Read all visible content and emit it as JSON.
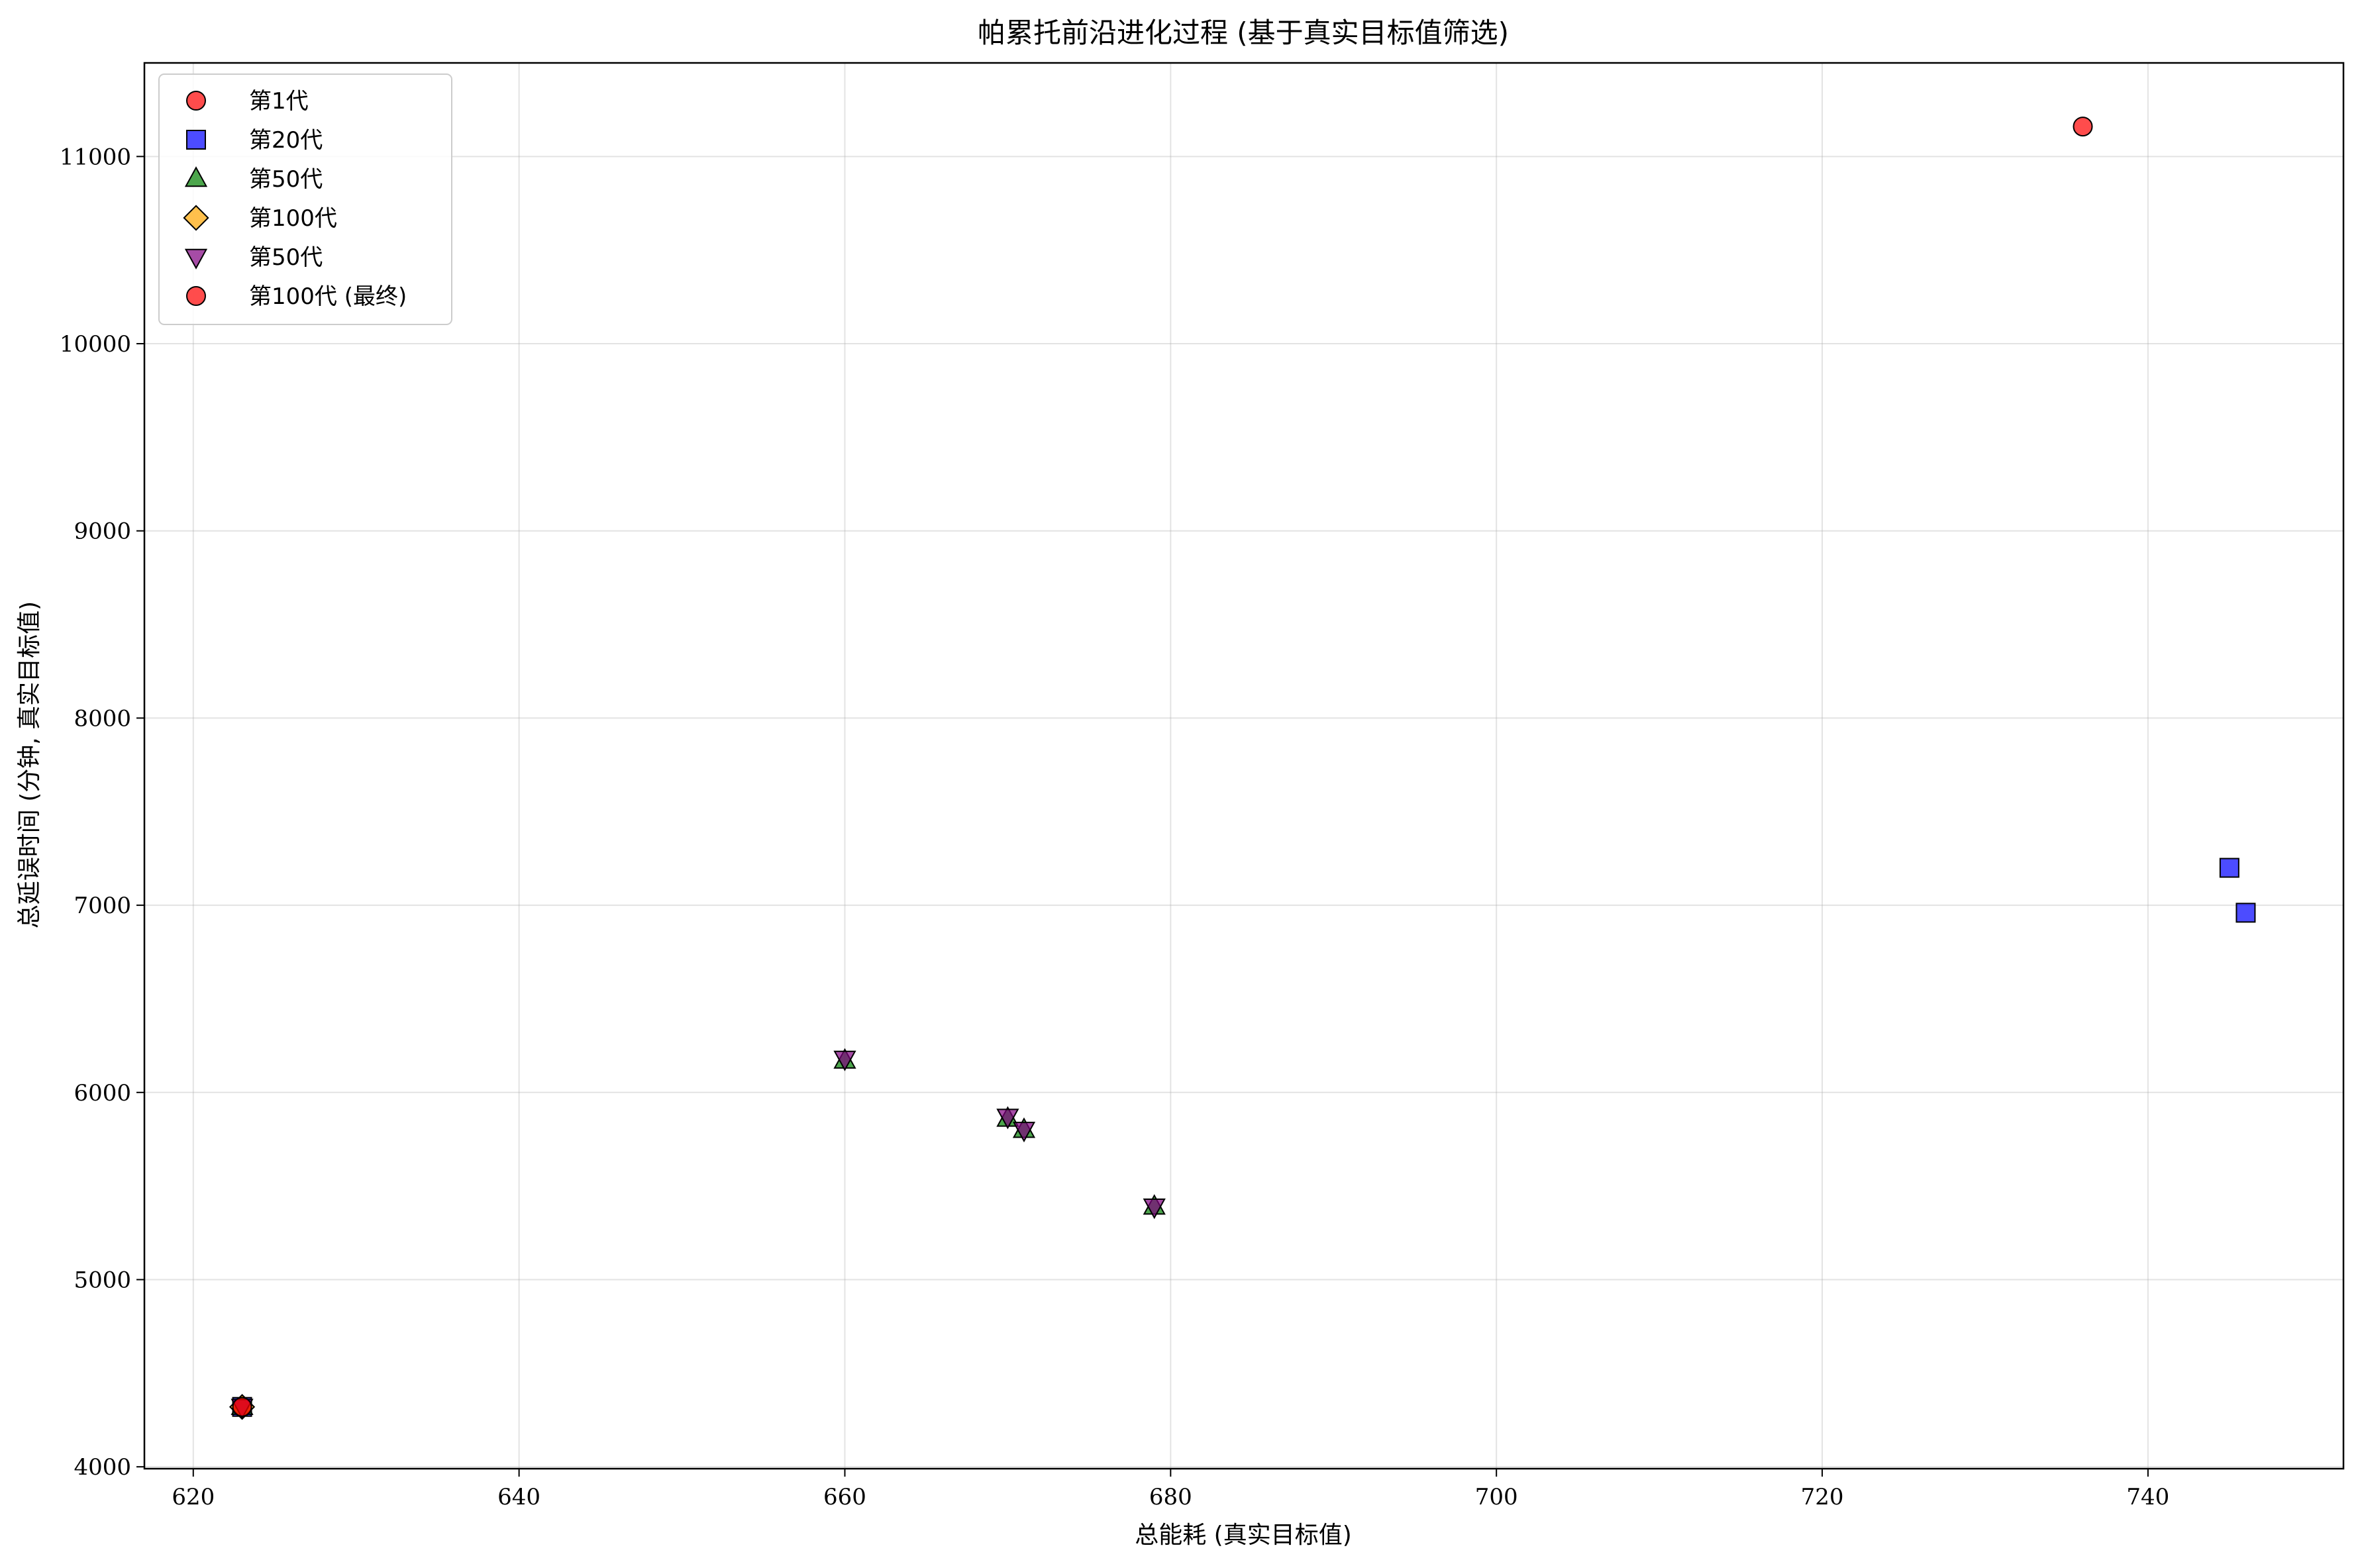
{
  "chart_data": {
    "type": "scatter",
    "title": "帕累托前沿进化过程 (基于真实目标值筛选)",
    "xlabel": "总能耗 (真实目标值)",
    "ylabel": "总延误时间 (分钟, 真实目标值)",
    "xlim": [
      617,
      752
    ],
    "ylim": [
      3990,
      11500
    ],
    "xticks": [
      620,
      640,
      660,
      680,
      700,
      720,
      740
    ],
    "yticks": [
      4000,
      5000,
      6000,
      7000,
      8000,
      9000,
      10000,
      11000
    ],
    "grid": true,
    "legend_position": "top-left",
    "series": [
      {
        "name": "第1代",
        "marker": "circle",
        "color": "#ff0000",
        "points": [
          {
            "x": 736,
            "y": 11160
          },
          {
            "x": 623,
            "y": 4320
          }
        ]
      },
      {
        "name": "第20代",
        "marker": "square",
        "color": "#0000ff",
        "points": [
          {
            "x": 745,
            "y": 7200
          },
          {
            "x": 746,
            "y": 6960
          },
          {
            "x": 623,
            "y": 4320
          }
        ]
      },
      {
        "name": "第50代",
        "marker": "triangle-up",
        "color": "#008000",
        "points": [
          {
            "x": 660,
            "y": 6170
          },
          {
            "x": 670,
            "y": 5860
          },
          {
            "x": 671,
            "y": 5800
          },
          {
            "x": 679,
            "y": 5390
          },
          {
            "x": 623,
            "y": 4320
          }
        ]
      },
      {
        "name": "第100代",
        "marker": "diamond",
        "color": "#ffa500",
        "points": [
          {
            "x": 623,
            "y": 4320
          }
        ]
      },
      {
        "name": "第50代",
        "marker": "triangle-down",
        "color": "#800080",
        "points": [
          {
            "x": 660,
            "y": 6180
          },
          {
            "x": 670,
            "y": 5870
          },
          {
            "x": 671,
            "y": 5800
          },
          {
            "x": 679,
            "y": 5390
          },
          {
            "x": 623,
            "y": 4320
          }
        ]
      },
      {
        "name": "第100代 (最终)",
        "marker": "circle",
        "color": "#ff0000",
        "points": [
          {
            "x": 623,
            "y": 4320
          }
        ]
      }
    ]
  }
}
